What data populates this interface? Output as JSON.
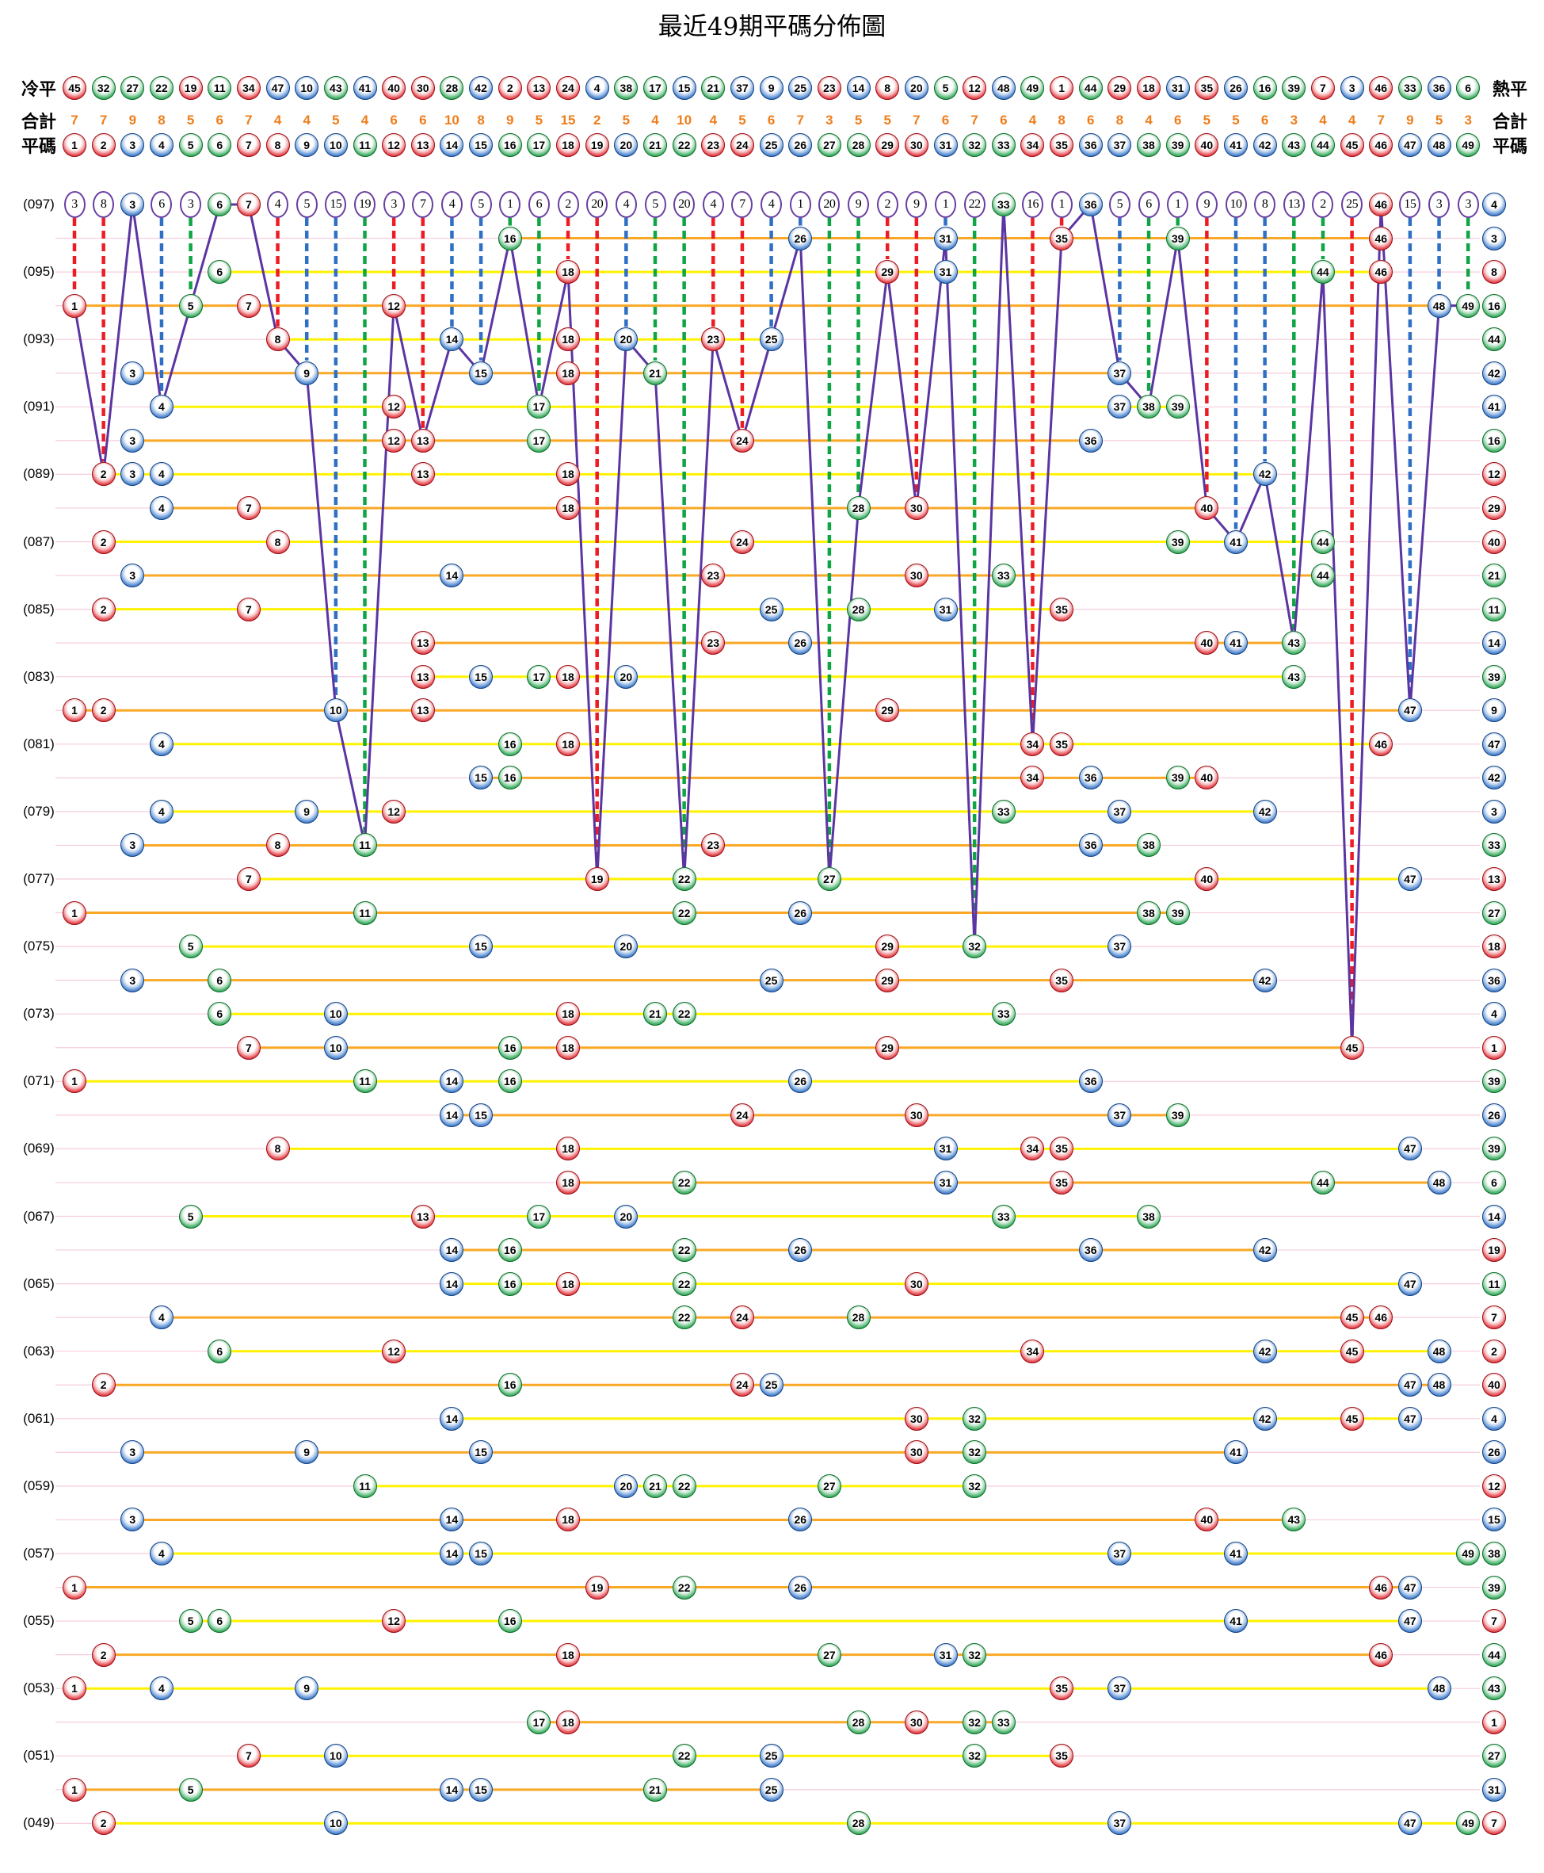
{
  "title": "最近49期平碼分佈圖",
  "header": {
    "cold_label": "冷平",
    "hot_label": "熱平",
    "total_label_left": "合計",
    "total_label_right": "合計",
    "number_label_left": "平碼",
    "number_label_right": "平碼",
    "cold_order": [
      45,
      32,
      27,
      22,
      19,
      11,
      34,
      47,
      10,
      43,
      41,
      40,
      30,
      28,
      42,
      2,
      13,
      24,
      4,
      38,
      17,
      15,
      21,
      37,
      9,
      25,
      23,
      14,
      8,
      20,
      5,
      12,
      48,
      49,
      1,
      44,
      29,
      18,
      31,
      35,
      26,
      16,
      39,
      7,
      3,
      46,
      33,
      36,
      6
    ],
    "totals": [
      7,
      7,
      9,
      8,
      5,
      6,
      7,
      4,
      4,
      5,
      4,
      6,
      6,
      10,
      8,
      9,
      5,
      15,
      2,
      5,
      4,
      10,
      4,
      5,
      6,
      7,
      3,
      5,
      5,
      7,
      6,
      7,
      6,
      4,
      8,
      6,
      8,
      4,
      6,
      5,
      5,
      6,
      3,
      4,
      4,
      7,
      9,
      5,
      3
    ],
    "numbers": [
      1,
      2,
      3,
      4,
      5,
      6,
      7,
      8,
      9,
      10,
      11,
      12,
      13,
      14,
      15,
      16,
      17,
      18,
      19,
      20,
      21,
      22,
      23,
      24,
      25,
      26,
      27,
      28,
      29,
      30,
      31,
      32,
      33,
      34,
      35,
      36,
      37,
      38,
      39,
      40,
      41,
      42,
      43,
      44,
      45,
      46,
      47,
      48,
      49
    ]
  },
  "chart_data": {
    "type": "scatter",
    "title": "最近49期平碼分佈圖",
    "columns": "lottery numbers 1-49",
    "rows_order": "draw 097 (top) to draw 049 (bottom)",
    "miss_gaps_row097": [
      3,
      8,
      0,
      6,
      3,
      0,
      0,
      4,
      5,
      15,
      19,
      3,
      7,
      4,
      5,
      1,
      6,
      2,
      20,
      4,
      5,
      20,
      4,
      7,
      4,
      1,
      20,
      9,
      2,
      9,
      1,
      22,
      0,
      16,
      1,
      0,
      5,
      6,
      1,
      9,
      10,
      8,
      13,
      2,
      25,
      0,
      15,
      3,
      3
    ],
    "draws": [
      {
        "p": "097",
        "label": "(097)",
        "n": [
          3,
          6,
          7,
          33,
          36,
          46
        ],
        "s": 4
      },
      {
        "p": "096",
        "label": "",
        "n": [
          16,
          26,
          31,
          35,
          39,
          46
        ],
        "s": 3
      },
      {
        "p": "095",
        "label": "(095)",
        "n": [
          6,
          18,
          29,
          31,
          44,
          46
        ],
        "s": 8
      },
      {
        "p": "094",
        "label": "",
        "n": [
          1,
          5,
          7,
          12,
          48,
          49
        ],
        "s": 16
      },
      {
        "p": "093",
        "label": "(093)",
        "n": [
          8,
          14,
          18,
          20,
          23,
          25
        ],
        "s": 44
      },
      {
        "p": "092",
        "label": "",
        "n": [
          3,
          9,
          15,
          18,
          21,
          37
        ],
        "s": 42
      },
      {
        "p": "091",
        "label": "(091)",
        "n": [
          4,
          12,
          17,
          37,
          38,
          39
        ],
        "s": 41
      },
      {
        "p": "090",
        "label": "",
        "n": [
          3,
          12,
          13,
          17,
          24,
          36
        ],
        "s": 16
      },
      {
        "p": "089",
        "label": "(089)",
        "n": [
          2,
          3,
          4,
          13,
          18,
          42
        ],
        "s": 12
      },
      {
        "p": "088",
        "label": "",
        "n": [
          4,
          7,
          18,
          28,
          30,
          40
        ],
        "s": 29
      },
      {
        "p": "087",
        "label": "(087)",
        "n": [
          2,
          8,
          24,
          39,
          41,
          44
        ],
        "s": 40
      },
      {
        "p": "086",
        "label": "",
        "n": [
          3,
          14,
          23,
          30,
          33,
          44
        ],
        "s": 21
      },
      {
        "p": "085",
        "label": "(085)",
        "n": [
          2,
          7,
          25,
          28,
          31,
          35
        ],
        "s": 11
      },
      {
        "p": "084",
        "label": "",
        "n": [
          13,
          23,
          26,
          40,
          41,
          43
        ],
        "s": 14
      },
      {
        "p": "083",
        "label": "(083)",
        "n": [
          13,
          15,
          17,
          18,
          20,
          43
        ],
        "s": 39
      },
      {
        "p": "082",
        "label": "",
        "n": [
          1,
          2,
          10,
          13,
          29,
          47
        ],
        "s": 9
      },
      {
        "p": "081",
        "label": "(081)",
        "n": [
          4,
          16,
          18,
          34,
          35,
          46
        ],
        "s": 47
      },
      {
        "p": "080",
        "label": "",
        "n": [
          15,
          16,
          34,
          36,
          39,
          40
        ],
        "s": 42
      },
      {
        "p": "079",
        "label": "(079)",
        "n": [
          4,
          9,
          12,
          33,
          37,
          42
        ],
        "s": 3
      },
      {
        "p": "078",
        "label": "",
        "n": [
          3,
          8,
          11,
          23,
          36,
          38
        ],
        "s": 33
      },
      {
        "p": "077",
        "label": "(077)",
        "n": [
          7,
          19,
          22,
          27,
          40,
          47
        ],
        "s": 13
      },
      {
        "p": "076",
        "label": "",
        "n": [
          1,
          11,
          22,
          26,
          38,
          39
        ],
        "s": 27
      },
      {
        "p": "075",
        "label": "(075)",
        "n": [
          5,
          15,
          20,
          29,
          32,
          37
        ],
        "s": 18
      },
      {
        "p": "074",
        "label": "",
        "n": [
          3,
          6,
          25,
          29,
          35,
          42
        ],
        "s": 36
      },
      {
        "p": "073",
        "label": "(073)",
        "n": [
          6,
          10,
          18,
          21,
          22,
          33
        ],
        "s": 4
      },
      {
        "p": "072",
        "label": "",
        "n": [
          7,
          10,
          16,
          18,
          29,
          45
        ],
        "s": 1
      },
      {
        "p": "071",
        "label": "(071)",
        "n": [
          1,
          11,
          14,
          16,
          26,
          36
        ],
        "s": 39
      },
      {
        "p": "070",
        "label": "",
        "n": [
          14,
          15,
          24,
          30,
          37,
          39
        ],
        "s": 26
      },
      {
        "p": "069",
        "label": "(069)",
        "n": [
          8,
          18,
          31,
          34,
          35,
          47
        ],
        "s": 39
      },
      {
        "p": "068",
        "label": "",
        "n": [
          18,
          22,
          31,
          35,
          44,
          48
        ],
        "s": 6
      },
      {
        "p": "067",
        "label": "(067)",
        "n": [
          5,
          13,
          17,
          20,
          33,
          38
        ],
        "s": 14
      },
      {
        "p": "066",
        "label": "",
        "n": [
          14,
          16,
          22,
          26,
          36,
          42
        ],
        "s": 19
      },
      {
        "p": "065",
        "label": "(065)",
        "n": [
          14,
          16,
          18,
          22,
          30,
          47
        ],
        "s": 11
      },
      {
        "p": "064",
        "label": "",
        "n": [
          4,
          22,
          24,
          28,
          45,
          46
        ],
        "s": 7
      },
      {
        "p": "063",
        "label": "(063)",
        "n": [
          6,
          12,
          34,
          42,
          45,
          48
        ],
        "s": 2
      },
      {
        "p": "062",
        "label": "",
        "n": [
          2,
          16,
          24,
          25,
          47,
          48
        ],
        "s": 40
      },
      {
        "p": "061",
        "label": "(061)",
        "n": [
          14,
          30,
          32,
          42,
          45,
          47
        ],
        "s": 4
      },
      {
        "p": "060",
        "label": "",
        "n": [
          3,
          9,
          15,
          30,
          32,
          41
        ],
        "s": 26
      },
      {
        "p": "059",
        "label": "(059)",
        "n": [
          11,
          20,
          21,
          22,
          27,
          32
        ],
        "s": 12
      },
      {
        "p": "058",
        "label": "",
        "n": [
          3,
          14,
          18,
          26,
          40,
          43
        ],
        "s": 15
      },
      {
        "p": "057",
        "label": "(057)",
        "n": [
          4,
          14,
          15,
          37,
          41,
          49
        ],
        "s": 38
      },
      {
        "p": "056",
        "label": "",
        "n": [
          1,
          19,
          22,
          26,
          46,
          47
        ],
        "s": 39
      },
      {
        "p": "055",
        "label": "(055)",
        "n": [
          5,
          6,
          12,
          16,
          41,
          47
        ],
        "s": 7
      },
      {
        "p": "054",
        "label": "",
        "n": [
          2,
          18,
          27,
          31,
          32,
          46
        ],
        "s": 44
      },
      {
        "p": "053",
        "label": "(053)",
        "n": [
          1,
          4,
          9,
          35,
          37,
          48
        ],
        "s": 43
      },
      {
        "p": "052",
        "label": "",
        "n": [
          17,
          18,
          28,
          30,
          32,
          33
        ],
        "s": 1
      },
      {
        "p": "051",
        "label": "(051)",
        "n": [
          7,
          10,
          22,
          25,
          32,
          35
        ],
        "s": 27
      },
      {
        "p": "050",
        "label": "",
        "n": [
          1,
          5,
          14,
          15,
          21,
          25
        ],
        "s": 31
      },
      {
        "p": "049",
        "label": "(049)",
        "n": [
          2,
          10,
          28,
          37,
          47,
          49
        ],
        "s": 7
      }
    ]
  },
  "colors": {
    "red_numbers": [
      1,
      2,
      7,
      8,
      12,
      13,
      18,
      19,
      23,
      24,
      29,
      30,
      34,
      35,
      40,
      45,
      46
    ],
    "blue_numbers": [
      3,
      4,
      9,
      10,
      14,
      15,
      20,
      25,
      26,
      31,
      36,
      37,
      41,
      42,
      47,
      48
    ],
    "green_numbers": [
      5,
      6,
      11,
      16,
      17,
      21,
      22,
      27,
      28,
      32,
      33,
      38,
      39,
      43,
      44,
      49
    ],
    "red": "#cb1f28",
    "blue": "#2a63b4",
    "green": "#21963f",
    "dash_red": "#ed1c24",
    "dash_blue": "#2f6fc4",
    "dash_green": "#0fa544",
    "line_yellow": "#fff200",
    "line_orange": "#f9a825",
    "zigzag": "#5b35a2",
    "circle_outline": "#6a3fa0",
    "totals_orange": "#ef7d1a",
    "ruling_pink": "#f7ccdc"
  }
}
